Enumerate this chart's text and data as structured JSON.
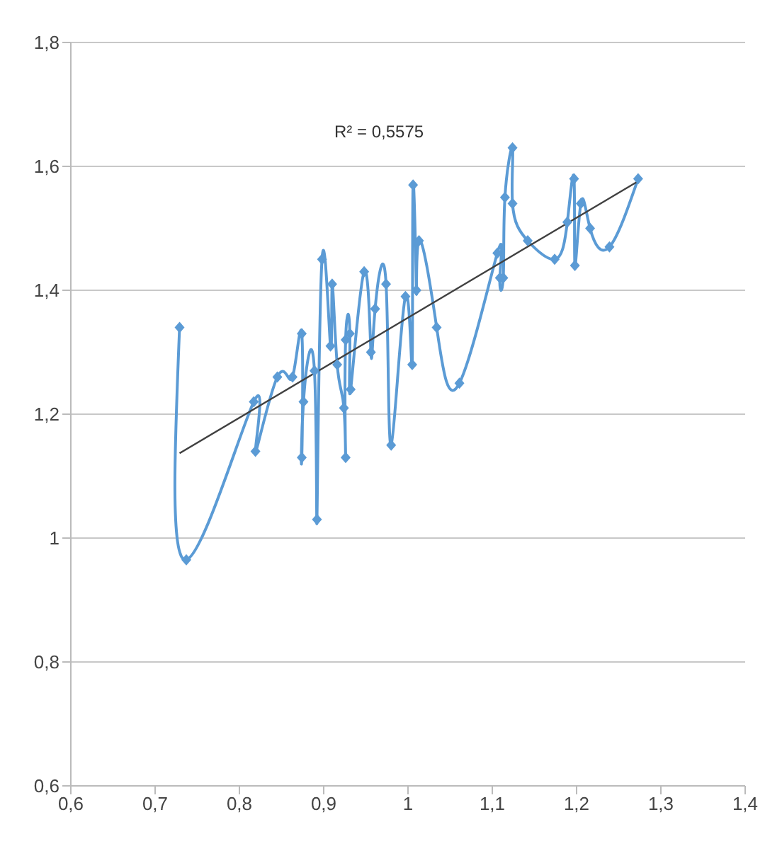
{
  "chart_data": {
    "type": "line",
    "marker": "diamond",
    "grid": "y",
    "annotations": [
      "R² = 0,5575"
    ],
    "xlim": [
      0.6,
      1.4
    ],
    "xticks": [
      {
        "value": 0.6,
        "label": "0,6"
      },
      {
        "value": 0.7,
        "label": "0,7"
      },
      {
        "value": 0.8,
        "label": "0,8"
      },
      {
        "value": 0.9,
        "label": "0,9"
      },
      1,
      {
        "value": 1.1,
        "label": "1,1"
      },
      {
        "value": 1.2,
        "label": "1,2"
      },
      {
        "value": 1.3,
        "label": "1,3"
      },
      {
        "value": 1.4,
        "label": "1,4"
      }
    ],
    "ylim": [
      0.6,
      1.8
    ],
    "yticks": [
      {
        "value": 0.6,
        "label": "0,6"
      },
      {
        "value": 0.8,
        "label": "0,8"
      },
      1,
      {
        "value": 1.2,
        "label": "1,2"
      },
      {
        "value": 1.4,
        "label": "1,4"
      },
      {
        "value": 1.6,
        "label": "1,6"
      },
      {
        "value": 1.8,
        "label": "1,8"
      }
    ],
    "series": [
      {
        "color": "#5b9bd5",
        "x": [
          0.729,
          0.737,
          0.817,
          0.819,
          0.845,
          0.863,
          0.874,
          0.874,
          0.876,
          0.889,
          0.892,
          0.898,
          0.908,
          0.91,
          0.916,
          0.924,
          0.926,
          0.926,
          0.931,
          0.932,
          0.948,
          0.956,
          0.961,
          0.974,
          0.98,
          0.997,
          1.005,
          1.006,
          1.01,
          1.013,
          1.034,
          1.061,
          1.106,
          1.109,
          1.113,
          1.115,
          1.124,
          1.124,
          1.142,
          1.174,
          1.189,
          1.197,
          1.198,
          1.205,
          1.216,
          1.239,
          1.273
        ],
        "values": [
          1.34,
          0.965,
          1.22,
          1.14,
          1.26,
          1.26,
          1.33,
          1.13,
          1.22,
          1.27,
          1.03,
          1.45,
          1.31,
          1.41,
          1.28,
          1.21,
          1.13,
          1.32,
          1.33,
          1.24,
          1.43,
          1.3,
          1.37,
          1.41,
          1.15,
          1.39,
          1.28,
          1.57,
          1.4,
          1.48,
          1.34,
          1.25,
          1.46,
          1.42,
          1.42,
          1.55,
          1.63,
          1.54,
          1.48,
          1.45,
          1.51,
          1.58,
          1.44,
          1.54,
          1.5,
          1.47,
          1.58
        ]
      },
      {
        "color": "#404040",
        "marker": "none",
        "x": [
          0.729,
          1.273
        ],
        "values": [
          1.137,
          1.576
        ]
      }
    ]
  }
}
